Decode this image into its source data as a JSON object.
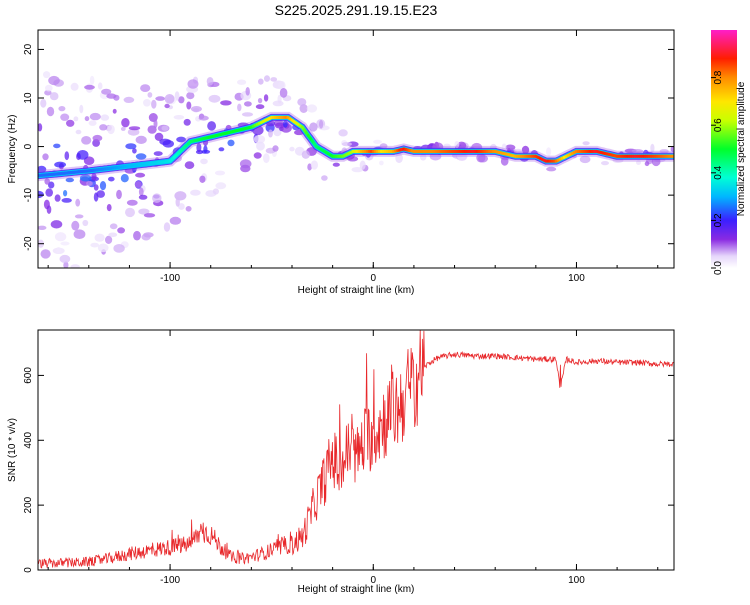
{
  "page": {
    "title": "S225.2025.291.19.15.E23"
  },
  "chart_data": [
    {
      "type": "heatmap",
      "title": "S225.2025.291.19.15.E23",
      "xlabel": "Height of straight line (km)",
      "ylabel": "Frequency (Hz)",
      "xlim": [
        -165,
        148
      ],
      "ylim": [
        -25,
        24
      ],
      "x_ticks": [
        -100,
        0,
        100
      ],
      "y_ticks": [
        -20,
        -10,
        0,
        10,
        20
      ],
      "colorbar": {
        "label": "Normalized spectral amplitude",
        "range": [
          0,
          1
        ],
        "ticks": [
          0.0,
          0.2,
          0.4,
          0.6,
          0.8
        ],
        "tick_labels": [
          "0.0",
          "0.2",
          "0.4",
          "0.6",
          "0.8"
        ]
      },
      "ridge": {
        "x": [
          -165,
          -140,
          -120,
          -100,
          -90,
          -80,
          -70,
          -60,
          -50,
          -42,
          -35,
          -28,
          -20,
          -15,
          -10,
          -5,
          0,
          5,
          10,
          15,
          20,
          30,
          40,
          50,
          60,
          70,
          80,
          85,
          90,
          95,
          100,
          110,
          120,
          130,
          140,
          148
        ],
        "y": [
          -6,
          -5,
          -4,
          -3,
          1,
          2,
          3,
          4,
          6,
          6,
          4,
          0,
          -2,
          -2,
          -1,
          -1,
          -1,
          -1,
          -1,
          -0.5,
          -1,
          -1,
          -1,
          -1,
          -1,
          -2,
          -2,
          -3,
          -3,
          -2,
          -1,
          -1,
          -2,
          -2,
          -2,
          -2
        ],
        "amplitude": [
          0.25,
          0.25,
          0.3,
          0.35,
          0.45,
          0.5,
          0.5,
          0.5,
          0.7,
          0.8,
          0.6,
          0.45,
          0.5,
          0.55,
          0.6,
          0.75,
          0.85,
          0.7,
          0.75,
          0.9,
          0.8,
          0.8,
          0.85,
          0.9,
          0.8,
          0.75,
          0.85,
          0.9,
          0.85,
          0.7,
          0.8,
          0.9,
          0.85,
          0.9,
          0.85,
          0.8
        ]
      }
    },
    {
      "type": "line",
      "xlabel": "Height of straight line (km)",
      "ylabel": "SNR (10 * v/v)",
      "xlim": [
        -165,
        148
      ],
      "ylim": [
        0,
        740
      ],
      "x_ticks": [
        -100,
        0,
        100
      ],
      "y_ticks": [
        0,
        200,
        400,
        600
      ],
      "color": "#e8282b",
      "series": [
        {
          "x": [
            -165,
            -150,
            -140,
            -130,
            -120,
            -110,
            -100,
            -90,
            -85,
            -80,
            -75,
            -70,
            -65,
            -60,
            -55,
            -50,
            -45,
            -40,
            -35,
            -32,
            -28,
            -24,
            -20,
            -16,
            -12,
            -8,
            -4,
            0,
            4,
            8,
            12,
            16,
            20,
            24,
            28,
            32,
            36,
            40,
            50,
            60,
            70,
            80,
            90,
            92,
            95,
            100,
            110,
            120,
            130,
            140,
            148
          ],
          "y": [
            20,
            22,
            25,
            35,
            50,
            60,
            70,
            80,
            120,
            110,
            70,
            40,
            35,
            40,
            50,
            60,
            70,
            80,
            100,
            150,
            220,
            280,
            350,
            300,
            380,
            350,
            400,
            420,
            450,
            480,
            500,
            540,
            580,
            620,
            640,
            655,
            660,
            665,
            660,
            660,
            655,
            650,
            650,
            560,
            650,
            640,
            645,
            640,
            640,
            635,
            635
          ]
        }
      ]
    }
  ]
}
